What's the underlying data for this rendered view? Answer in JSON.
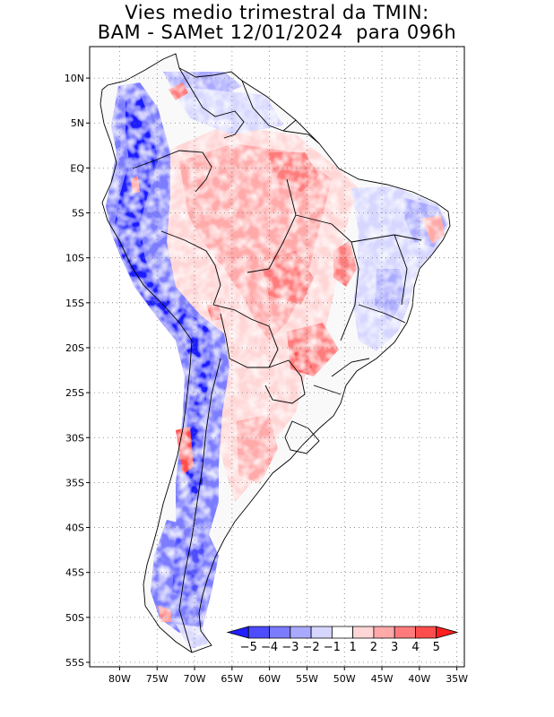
{
  "title": {
    "line1": "Vies medio trimestral da TMIN:",
    "line2": "BAM - SAMet 12/01/2024  para 096h"
  },
  "axes": {
    "lat_labels": [
      "10N",
      "5N",
      "EQ",
      "5S",
      "10S",
      "15S",
      "20S",
      "25S",
      "30S",
      "35S",
      "40S",
      "45S",
      "50S",
      "55S"
    ],
    "lon_labels": [
      "80W",
      "75W",
      "70W",
      "65W",
      "60W",
      "55W",
      "50W",
      "45W",
      "40W",
      "35W"
    ],
    "lat_range": [
      -55.5,
      13.5
    ],
    "lon_range": [
      -84,
      -34
    ],
    "grid_step_deg": 5,
    "grid": "dotted"
  },
  "colorbar": {
    "labels": [
      "-5",
      "-4",
      "-3",
      "-2",
      "-1",
      "1",
      "2",
      "3",
      "4",
      "5"
    ],
    "colors": [
      "#1f1fff",
      "#4d4dff",
      "#7b7bff",
      "#a9a9ff",
      "#d6d6ff",
      "#ffffff",
      "#ffd6d6",
      "#ffa9a9",
      "#ff7b7b",
      "#ff4d4d",
      "#ff1f1f"
    ]
  }
}
